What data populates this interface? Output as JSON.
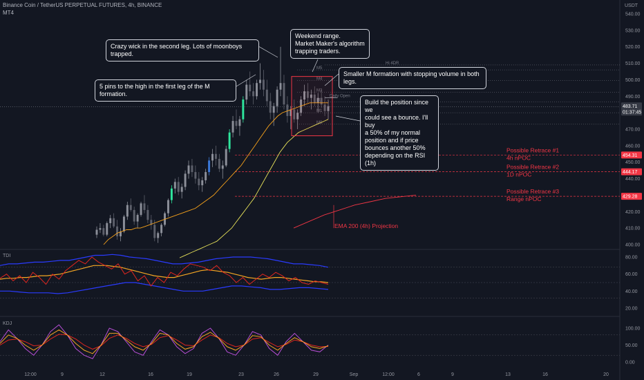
{
  "header": {
    "symbol_line": "Binance Coin / TetherUS PERPETUAL FUTURES, 4h, BINANCE",
    "sub_label": "MT4",
    "currency": "USDT"
  },
  "colors": {
    "background": "#131722",
    "bull_candle": "#8c8f99",
    "bear_candle": "#5d606b",
    "ema_fast": "#f7a21b",
    "ema_slow": "#e8e35a",
    "annotation_red": "#f23645",
    "tdi_band": "#2a3bff",
    "tdi_price": "#e0261f",
    "tdi_mid": "#f5a623",
    "kdj_k": "#f5a623",
    "kdj_j": "#b84fd6",
    "kdj_d": "#e0261f"
  },
  "annotations": {
    "crazy_wick": "Crazy wick in the second leg. Lots of moonboys trapped.",
    "five_pins": "5 pins to the high in the first leg of the M formation.",
    "weekend_range": [
      "Weekend range.",
      "Market Maker's algorithm",
      "trapping traders."
    ],
    "smaller_m": "Smaller M formation with stopping volume in both legs.",
    "build_position": [
      "Build the position since we",
      "could see a bounce. I'll buy",
      "a 50% of my normal",
      "position and if price",
      "bounces another 50%",
      "depending on the RSI (1h)"
    ],
    "daily_open": "Daily Open",
    "hi_4dr": "Hi 4DR",
    "ema200_projection": "EMA 200 (4h) Projection"
  },
  "levels": [
    {
      "name": "M5",
      "price": 506.0
    },
    {
      "name": "M4",
      "price": 499.5
    },
    {
      "name": "M3",
      "price": 492.5
    },
    {
      "name": "M2",
      "price": 486.5
    },
    {
      "name": "M1",
      "price": 480.0
    },
    {
      "name": "M0",
      "price": 473.0
    }
  ],
  "retraces": [
    {
      "title": "Possible Retrace #1",
      "sub": "4h nPOC",
      "price": 454.31,
      "badge": "454.31"
    },
    {
      "title": "Possible Retrace #2",
      "sub": "1D nPOC",
      "price": 444.17,
      "badge": "444.17"
    },
    {
      "title": "Possible Retrace #3",
      "sub": "Range nPOC",
      "price": 429.28,
      "badge": "429.28"
    }
  ],
  "current": {
    "price": 483.71,
    "price_label": "483.71",
    "countdown": "01:37:45"
  },
  "chart_data": {
    "type": "candlestick",
    "price_axis": {
      "min": 400,
      "max": 540,
      "ticks": [
        "540.00",
        "530.00",
        "520.00",
        "510.00",
        "500.00",
        "490.00",
        "480.00",
        "470.00",
        "460.00",
        "450.00",
        "440.00",
        "430.00",
        "420.00",
        "410.00",
        "400.00"
      ]
    },
    "time_axis": {
      "ticks": [
        "12:00",
        "9",
        "12",
        "16",
        "19",
        "23",
        "26",
        "29",
        "Sep",
        "12:00",
        "6",
        "9",
        "13",
        "16",
        "20"
      ]
    },
    "candles": [
      [
        406,
        411,
        404,
        409
      ],
      [
        409,
        413,
        407,
        410
      ],
      [
        410,
        412,
        405,
        406
      ],
      [
        406,
        414,
        405,
        413
      ],
      [
        413,
        418,
        410,
        416
      ],
      [
        416,
        419,
        410,
        411
      ],
      [
        411,
        415,
        403,
        405
      ],
      [
        405,
        410,
        402,
        408
      ],
      [
        408,
        418,
        407,
        417
      ],
      [
        417,
        426,
        415,
        424
      ],
      [
        424,
        428,
        420,
        421
      ],
      [
        421,
        423,
        412,
        414
      ],
      [
        414,
        419,
        410,
        418
      ],
      [
        418,
        426,
        417,
        425
      ],
      [
        425,
        430,
        419,
        421
      ],
      [
        421,
        424,
        413,
        415
      ],
      [
        415,
        418,
        409,
        412
      ],
      [
        412,
        415,
        402,
        404
      ],
      [
        404,
        408,
        401,
        407
      ],
      [
        407,
        413,
        405,
        412
      ],
      [
        412,
        420,
        411,
        419
      ],
      [
        419,
        428,
        417,
        427
      ],
      [
        427,
        436,
        425,
        434
      ],
      [
        434,
        440,
        431,
        438
      ],
      [
        438,
        441,
        430,
        432
      ],
      [
        432,
        437,
        428,
        435
      ],
      [
        435,
        445,
        433,
        443
      ],
      [
        443,
        451,
        440,
        448
      ],
      [
        448,
        452,
        441,
        444
      ],
      [
        444,
        448,
        437,
        440
      ],
      [
        440,
        444,
        433,
        436
      ],
      [
        436,
        441,
        432,
        439
      ],
      [
        439,
        446,
        437,
        444
      ],
      [
        444,
        453,
        442,
        451
      ],
      [
        451,
        458,
        447,
        455
      ],
      [
        455,
        460,
        448,
        452
      ],
      [
        452,
        455,
        444,
        446
      ],
      [
        446,
        451,
        440,
        448
      ],
      [
        448,
        460,
        447,
        458
      ],
      [
        458,
        470,
        456,
        468
      ],
      [
        468,
        478,
        465,
        475
      ],
      [
        475,
        482,
        470,
        472
      ],
      [
        472,
        478,
        466,
        476
      ],
      [
        476,
        490,
        474,
        488
      ],
      [
        488,
        500,
        485,
        497
      ],
      [
        497,
        505,
        490,
        493
      ],
      [
        493,
        498,
        485,
        490
      ],
      [
        490,
        500,
        488,
        498
      ],
      [
        498,
        510,
        494,
        500
      ],
      [
        500,
        506,
        490,
        494
      ],
      [
        494,
        500,
        484,
        487
      ],
      [
        487,
        492,
        476,
        480
      ],
      [
        480,
        486,
        472,
        484
      ],
      [
        484,
        496,
        480,
        494
      ],
      [
        494,
        520,
        490,
        498
      ],
      [
        498,
        503,
        482,
        485
      ],
      [
        485,
        490,
        474,
        478
      ],
      [
        478,
        484,
        470,
        482
      ],
      [
        482,
        488,
        474,
        476
      ],
      [
        476,
        482,
        470,
        480
      ],
      [
        480,
        490,
        478,
        488
      ],
      [
        488,
        497,
        484,
        493
      ],
      [
        493,
        498,
        486,
        489
      ],
      [
        489,
        494,
        482,
        491
      ],
      [
        491,
        496,
        484,
        486
      ],
      [
        486,
        492,
        480,
        489
      ],
      [
        489,
        494,
        483,
        485
      ],
      [
        485,
        490,
        478,
        481
      ],
      [
        481,
        488,
        476,
        484
      ]
    ],
    "ema_fast": [
      400,
      403,
      405,
      407,
      408,
      409,
      409,
      410,
      410,
      411,
      412,
      413,
      414,
      415,
      416,
      417,
      418,
      419,
      420,
      421,
      422,
      424,
      426,
      428,
      430,
      433,
      436,
      439,
      442,
      445,
      448,
      452,
      456,
      460,
      464,
      468,
      472,
      475,
      478,
      480,
      481,
      482,
      483,
      484,
      485,
      486,
      486,
      486,
      486,
      486
    ],
    "ema_slow": [
      392,
      393,
      394,
      395,
      396,
      397,
      398,
      399,
      400,
      401,
      402,
      404,
      406,
      408,
      410,
      413,
      416,
      419,
      422,
      425,
      428,
      432,
      436,
      440,
      444,
      448,
      452,
      456,
      459,
      462,
      464,
      466,
      468,
      469,
      470,
      471,
      472,
      473,
      474,
      475,
      476
    ],
    "ema200_projection": [
      410,
      414,
      418,
      421,
      424,
      426,
      428,
      429,
      430
    ],
    "tdi_axis": {
      "ticks": [
        "80.00",
        "60.00",
        "40.00",
        "20.00"
      ]
    },
    "kdj_axis": {
      "ticks": [
        "100.00",
        "50.00",
        "0.00"
      ]
    },
    "tdi_price": [
      55,
      60,
      52,
      58,
      50,
      62,
      56,
      48,
      60,
      54,
      64,
      70,
      76,
      72,
      80,
      74,
      70,
      66,
      72,
      60,
      64,
      52,
      58,
      46,
      56,
      50,
      62,
      58,
      66,
      72,
      70,
      68,
      64,
      70,
      62,
      58,
      50,
      56,
      48,
      54,
      60,
      56,
      62,
      58,
      52,
      56,
      50,
      48,
      52,
      50,
      48
    ],
    "tdi_mid": [
      54,
      55,
      55,
      56,
      56,
      57,
      58,
      58,
      59,
      60,
      62,
      64,
      66,
      68,
      70,
      70,
      70,
      69,
      68,
      66,
      64,
      62,
      60,
      58,
      57,
      56,
      56,
      58,
      60,
      62,
      64,
      65,
      64,
      63,
      62,
      60,
      58,
      56,
      55,
      54,
      55,
      56,
      56,
      55,
      54,
      53,
      52,
      51,
      51,
      50
    ],
    "tdi_upper": [
      70,
      72,
      72,
      73,
      74,
      74,
      75,
      76,
      76,
      78,
      80,
      82,
      82,
      83,
      82,
      80,
      79,
      78,
      76,
      74,
      72,
      72,
      73,
      74,
      76,
      78,
      79,
      80,
      80,
      80,
      79,
      78,
      76,
      74,
      72,
      72,
      71,
      70,
      68
    ],
    "tdi_lower": [
      40,
      40,
      39,
      38,
      38,
      38,
      37,
      38,
      40,
      42,
      44,
      46,
      48,
      50,
      50,
      48,
      46,
      44,
      42,
      40,
      40,
      40,
      42,
      44,
      46,
      46,
      45,
      44,
      42,
      42,
      43,
      44,
      44,
      43,
      42
    ],
    "kdj_j": [
      60,
      95,
      70,
      40,
      20,
      50,
      90,
      110,
      80,
      40,
      20,
      10,
      50,
      100,
      90,
      60,
      30,
      20,
      60,
      95,
      80,
      45,
      25,
      40,
      85,
      100,
      70,
      30,
      20,
      50,
      90,
      80,
      40,
      20,
      60,
      85,
      60,
      35,
      30,
      50
    ],
    "kdj_k": [
      55,
      80,
      70,
      50,
      35,
      50,
      80,
      95,
      80,
      55,
      35,
      25,
      50,
      85,
      85,
      65,
      45,
      35,
      55,
      85,
      80,
      55,
      38,
      45,
      75,
      88,
      70,
      45,
      35,
      50,
      78,
      75,
      50,
      35,
      55,
      72,
      60,
      45,
      40,
      48
    ],
    "kdj_d": [
      50,
      65,
      68,
      60,
      48,
      50,
      68,
      82,
      80,
      68,
      50,
      38,
      48,
      70,
      80,
      70,
      55,
      45,
      52,
      72,
      78,
      65,
      50,
      48,
      65,
      80,
      72,
      55,
      45,
      50,
      68,
      72,
      58,
      45,
      52,
      65,
      60,
      50,
      45,
      46
    ]
  }
}
